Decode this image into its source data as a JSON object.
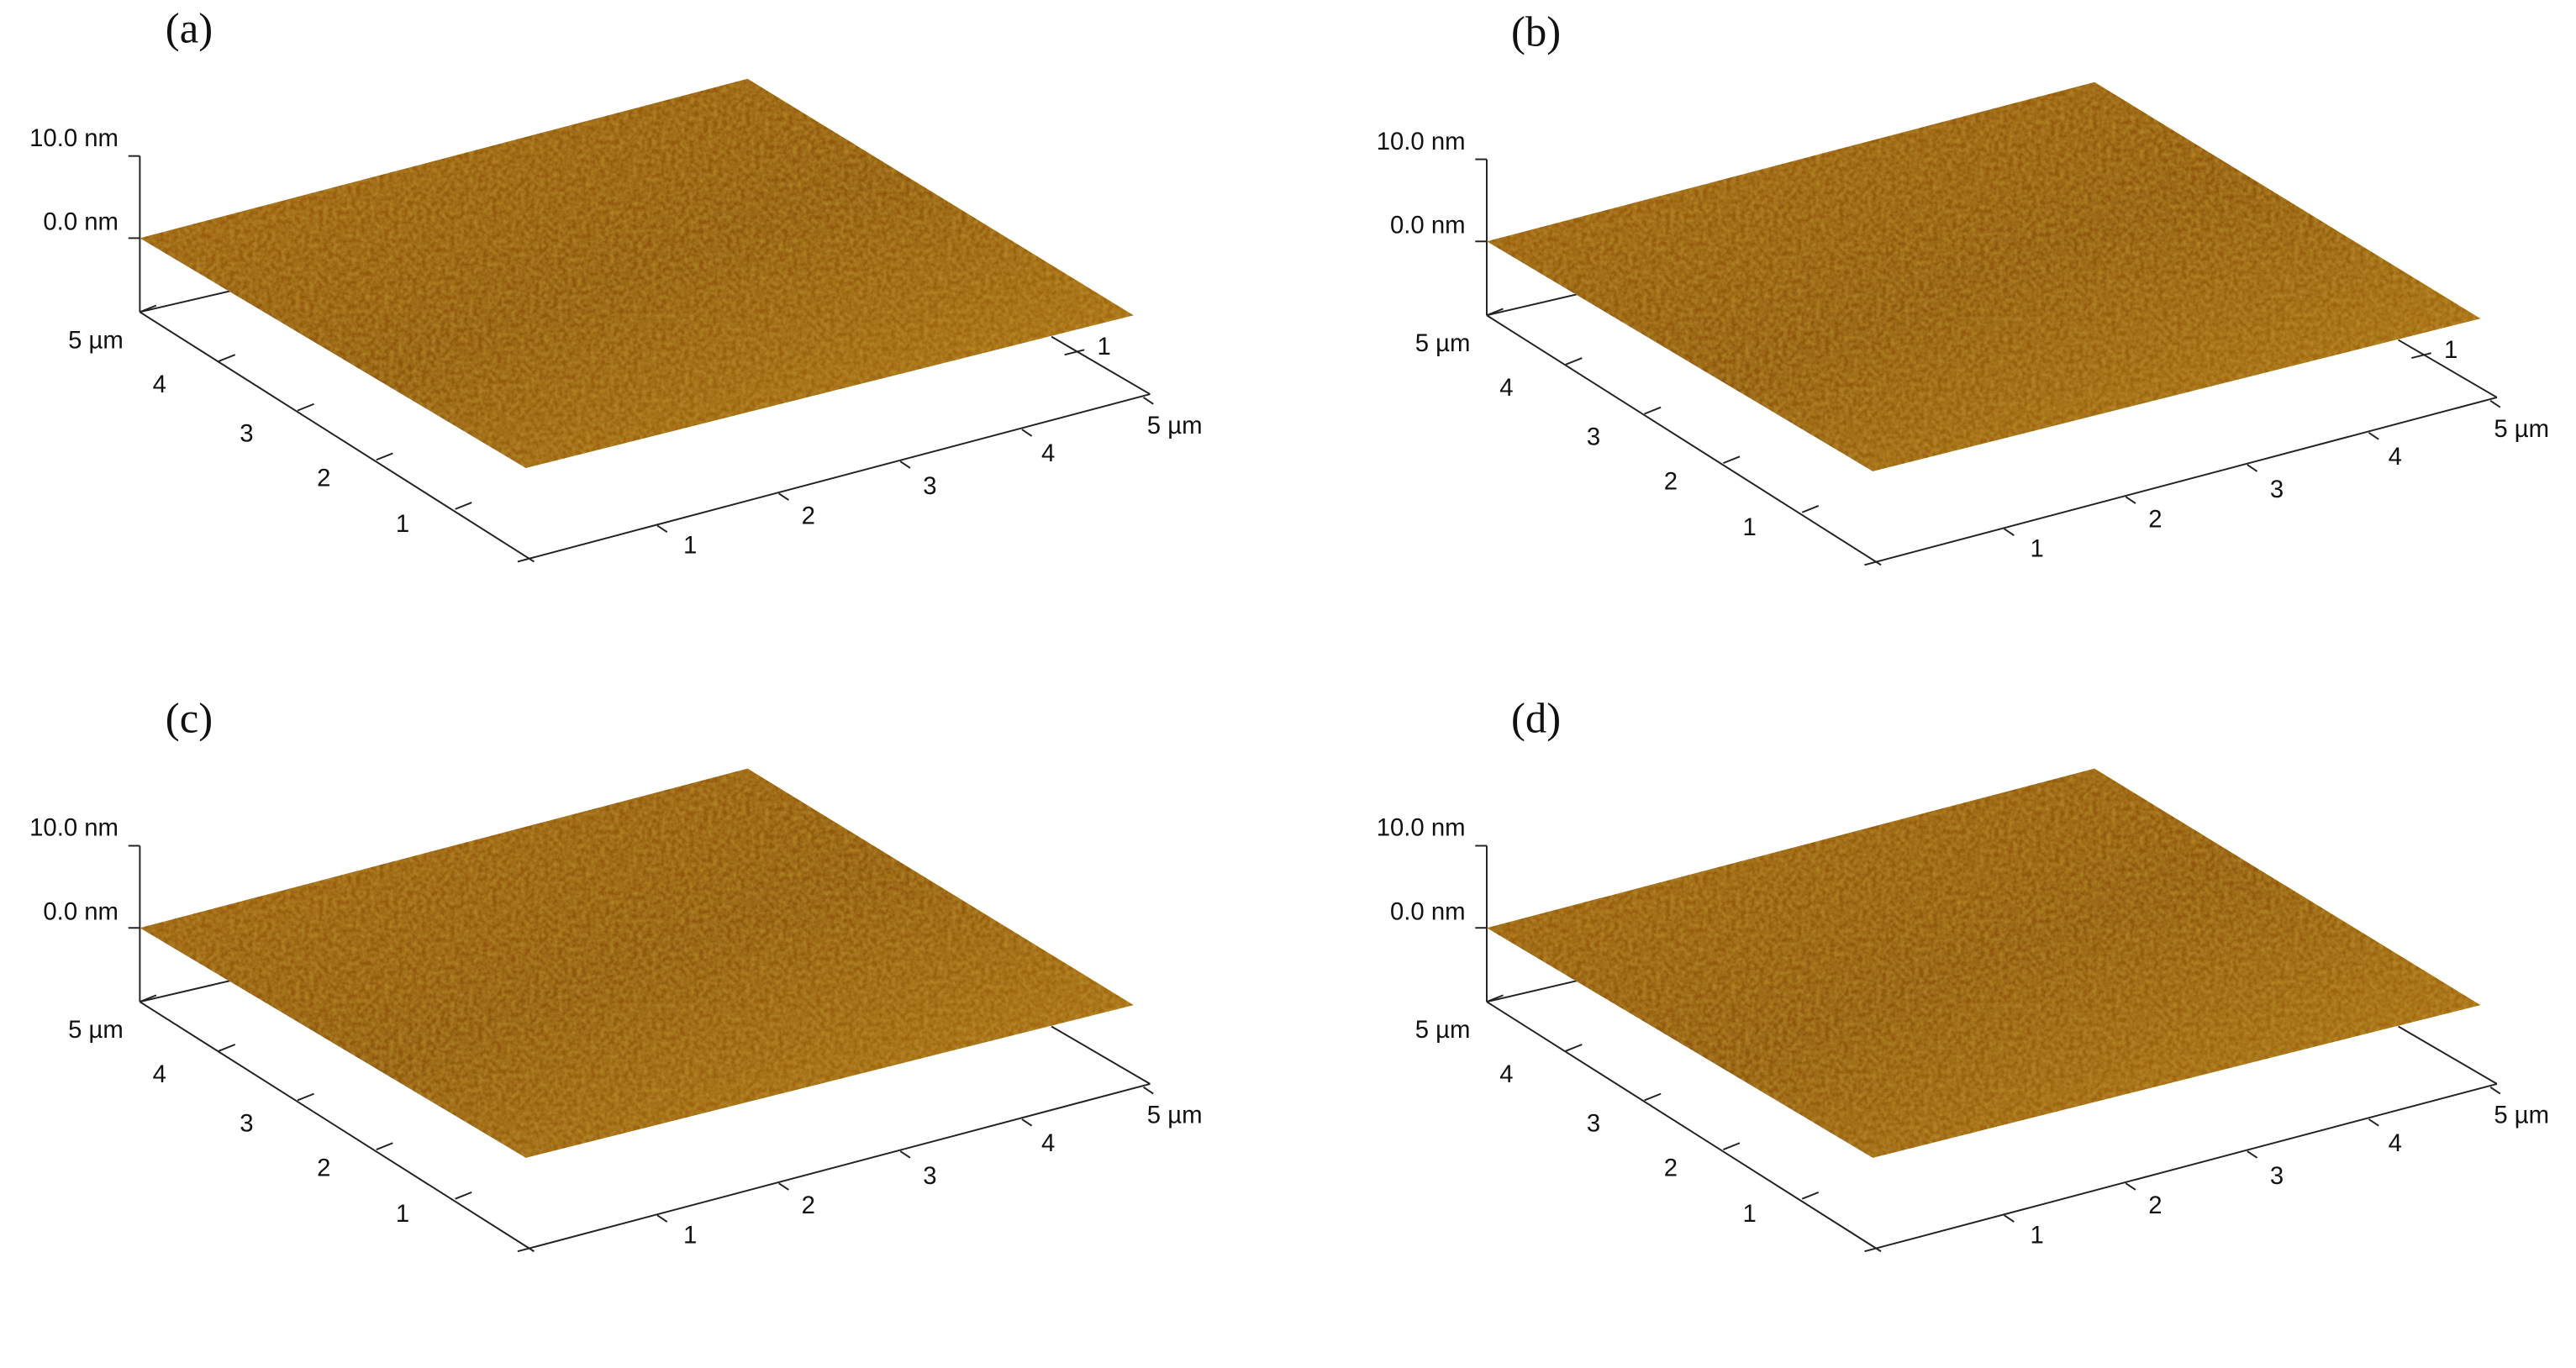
{
  "panels": [
    {
      "label": "(a)",
      "z_labels": [
        "10.0 nm",
        "0.0 nm"
      ],
      "left_axis_labels": [
        "5 µm",
        "4",
        "3",
        "2",
        "1"
      ],
      "right_axis_labels": [
        "1",
        "2",
        "3",
        "4",
        "5 µm"
      ],
      "corner_label": "1"
    },
    {
      "label": "(b)",
      "z_labels": [
        "10.0 nm",
        "0.0 nm"
      ],
      "left_axis_labels": [
        "5 µm",
        "4",
        "3",
        "2",
        "1"
      ],
      "right_axis_labels": [
        "1",
        "2",
        "3",
        "4",
        "5 µm"
      ],
      "corner_label": "1"
    },
    {
      "label": "(c)",
      "z_labels": [
        "10.0 nm",
        "0.0 nm"
      ],
      "left_axis_labels": [
        "5 µm",
        "4",
        "3",
        "2",
        "1"
      ],
      "right_axis_labels": [
        "1",
        "2",
        "3",
        "4",
        "5 µm"
      ]
    },
    {
      "label": "(d)",
      "z_labels": [
        "10.0 nm",
        "0.0 nm"
      ],
      "left_axis_labels": [
        "5 µm",
        "4",
        "3",
        "2",
        "1"
      ],
      "right_axis_labels": [
        "1",
        "2",
        "3",
        "4",
        "5 µm"
      ]
    }
  ]
}
